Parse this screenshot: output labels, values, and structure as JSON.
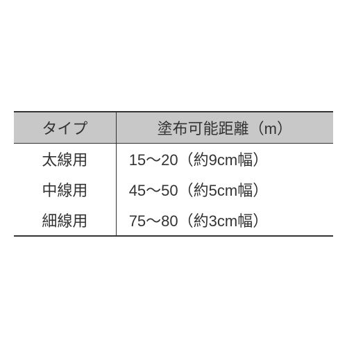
{
  "table": {
    "columns": [
      "タイプ",
      "塗布可能距離（m）"
    ],
    "rows": [
      [
        "太線用",
        "15～20（約9cm幅）"
      ],
      [
        "中線用",
        "45～50（約5cm幅）"
      ],
      [
        "細線用",
        "75～80（約3cm幅）"
      ]
    ],
    "header_bg": "#c8c8c8",
    "border_color": "#333333",
    "text_color": "#333333",
    "font_size": 22
  }
}
